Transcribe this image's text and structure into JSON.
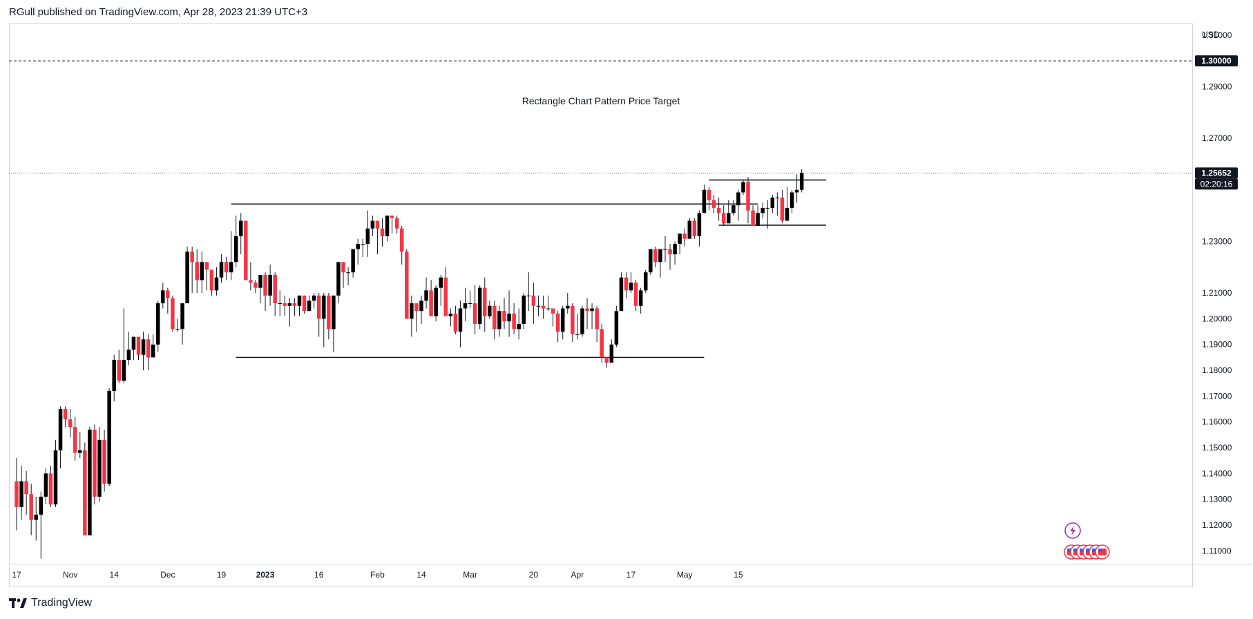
{
  "header": {
    "published": "RGull published on TradingView.com, Apr 28, 2023 21:39 UTC+3"
  },
  "footer": {
    "brand": "TradingView",
    "icon": "tradingview-logo-icon"
  },
  "chart_data": {
    "type": "candlestick",
    "instrument_currency": "USD",
    "ylim": [
      1.105,
      1.3145
    ],
    "y_ticks": [
      "1.31000",
      "1.29000",
      "1.27000",
      "1.23000",
      "1.21000",
      "1.20000",
      "1.19000",
      "1.18000",
      "1.17000",
      "1.16000",
      "1.15000",
      "1.14000",
      "1.13000",
      "1.12000",
      "1.11000"
    ],
    "x_ticks": [
      {
        "label": "17",
        "i": 0
      },
      {
        "label": "Nov",
        "i": 11
      },
      {
        "label": "14",
        "i": 20
      },
      {
        "label": "Dec",
        "i": 31
      },
      {
        "label": "19",
        "i": 42
      },
      {
        "label": "2023",
        "i": 51,
        "bold": true
      },
      {
        "label": "16",
        "i": 62
      },
      {
        "label": "Feb",
        "i": 74
      },
      {
        "label": "14",
        "i": 83
      },
      {
        "label": "Mar",
        "i": 93
      },
      {
        "label": "20",
        "i": 106
      },
      {
        "label": "Apr",
        "i": 115
      },
      {
        "label": "17",
        "i": 126
      },
      {
        "label": "May",
        "i": 137
      },
      {
        "label": "15",
        "i": 148
      }
    ],
    "candles": [
      [
        1.137,
        1.127,
        1.146,
        1.118
      ],
      [
        1.127,
        1.137,
        1.143,
        1.122
      ],
      [
        1.137,
        1.132,
        1.141,
        1.124
      ],
      [
        1.132,
        1.122,
        1.136,
        1.116
      ],
      [
        1.122,
        1.124,
        1.131,
        1.114
      ],
      [
        1.124,
        1.131,
        1.133,
        1.107
      ],
      [
        1.131,
        1.14,
        1.142,
        1.128
      ],
      [
        1.14,
        1.128,
        1.143,
        1.127
      ],
      [
        1.128,
        1.149,
        1.153,
        1.127
      ],
      [
        1.149,
        1.165,
        1.166,
        1.142
      ],
      [
        1.165,
        1.161,
        1.166,
        1.158
      ],
      [
        1.161,
        1.158,
        1.165,
        1.154
      ],
      [
        1.158,
        1.148,
        1.162,
        1.145
      ],
      [
        1.148,
        1.149,
        1.156,
        1.146
      ],
      [
        1.149,
        1.116,
        1.152,
        1.116
      ],
      [
        1.116,
        1.157,
        1.158,
        1.116
      ],
      [
        1.157,
        1.131,
        1.159,
        1.128
      ],
      [
        1.131,
        1.153,
        1.158,
        1.129
      ],
      [
        1.153,
        1.136,
        1.157,
        1.133
      ],
      [
        1.136,
        1.172,
        1.173,
        1.135
      ],
      [
        1.172,
        1.184,
        1.186,
        1.168
      ],
      [
        1.184,
        1.176,
        1.188,
        1.175
      ],
      [
        1.176,
        1.184,
        1.204,
        1.175
      ],
      [
        1.184,
        1.188,
        1.195,
        1.182
      ],
      [
        1.188,
        1.193,
        1.193,
        1.184
      ],
      [
        1.193,
        1.186,
        1.193,
        1.184
      ],
      [
        1.186,
        1.192,
        1.195,
        1.18
      ],
      [
        1.192,
        1.185,
        1.194,
        1.18
      ],
      [
        1.185,
        1.19,
        1.194,
        1.187
      ],
      [
        1.19,
        1.206,
        1.207,
        1.187
      ],
      [
        1.206,
        1.211,
        1.214,
        1.204
      ],
      [
        1.211,
        1.208,
        1.212,
        1.202
      ],
      [
        1.208,
        1.196,
        1.209,
        1.195
      ],
      [
        1.196,
        1.196,
        1.2,
        1.195
      ],
      [
        1.196,
        1.206,
        1.206,
        1.19
      ],
      [
        1.206,
        1.226,
        1.228,
        1.206
      ],
      [
        1.226,
        1.222,
        1.228,
        1.21
      ],
      [
        1.222,
        1.215,
        1.227,
        1.21
      ],
      [
        1.215,
        1.222,
        1.226,
        1.21
      ],
      [
        1.222,
        1.219,
        1.222,
        1.211
      ],
      [
        1.219,
        1.211,
        1.219,
        1.209
      ],
      [
        1.211,
        1.216,
        1.22,
        1.209
      ],
      [
        1.216,
        1.222,
        1.225,
        1.214
      ],
      [
        1.222,
        1.218,
        1.224,
        1.215
      ],
      [
        1.218,
        1.222,
        1.234,
        1.215
      ],
      [
        1.222,
        1.232,
        1.24,
        1.22
      ],
      [
        1.232,
        1.238,
        1.241,
        1.225
      ],
      [
        1.238,
        1.215,
        1.238,
        1.215
      ],
      [
        1.215,
        1.214,
        1.222,
        1.211
      ],
      [
        1.214,
        1.212,
        1.215,
        1.21
      ],
      [
        1.212,
        1.217,
        1.217,
        1.206
      ],
      [
        1.217,
        1.209,
        1.218,
        1.203
      ],
      [
        1.209,
        1.217,
        1.221,
        1.205
      ],
      [
        1.217,
        1.206,
        1.218,
        1.201
      ],
      [
        1.206,
        1.206,
        1.211,
        1.201
      ],
      [
        1.206,
        1.205,
        1.209,
        1.201
      ],
      [
        1.205,
        1.206,
        1.208,
        1.197
      ],
      [
        1.206,
        1.205,
        1.208,
        1.201
      ],
      [
        1.205,
        1.209,
        1.209,
        1.201
      ],
      [
        1.209,
        1.203,
        1.209,
        1.202
      ],
      [
        1.203,
        1.207,
        1.209,
        1.203
      ],
      [
        1.207,
        1.209,
        1.21,
        1.204
      ],
      [
        1.209,
        1.2,
        1.21,
        1.193
      ],
      [
        1.2,
        1.209,
        1.21,
        1.189
      ],
      [
        1.209,
        1.196,
        1.21,
        1.192
      ],
      [
        1.196,
        1.209,
        1.209,
        1.187
      ],
      [
        1.209,
        1.222,
        1.222,
        1.206
      ],
      [
        1.222,
        1.218,
        1.222,
        1.212
      ],
      [
        1.218,
        1.218,
        1.22,
        1.213
      ],
      [
        1.218,
        1.227,
        1.227,
        1.216
      ],
      [
        1.227,
        1.229,
        1.231,
        1.221
      ],
      [
        1.229,
        1.229,
        1.231,
        1.224
      ],
      [
        1.229,
        1.235,
        1.242,
        1.224
      ],
      [
        1.235,
        1.238,
        1.24,
        1.232
      ],
      [
        1.238,
        1.235,
        1.238,
        1.225
      ],
      [
        1.235,
        1.232,
        1.239,
        1.228
      ],
      [
        1.232,
        1.24,
        1.24,
        1.23
      ],
      [
        1.24,
        1.239,
        1.24,
        1.233
      ],
      [
        1.239,
        1.235,
        1.24,
        1.233
      ],
      [
        1.235,
        1.226,
        1.236,
        1.221
      ],
      [
        1.226,
        1.2,
        1.227,
        1.2
      ],
      [
        1.2,
        1.206,
        1.209,
        1.193
      ],
      [
        1.206,
        1.203,
        1.206,
        1.195
      ],
      [
        1.203,
        1.207,
        1.209,
        1.198
      ],
      [
        1.207,
        1.211,
        1.216,
        1.204
      ],
      [
        1.211,
        1.201,
        1.215,
        1.201
      ],
      [
        1.201,
        1.212,
        1.213,
        1.199
      ],
      [
        1.212,
        1.216,
        1.217,
        1.205
      ],
      [
        1.216,
        1.201,
        1.22,
        1.201
      ],
      [
        1.201,
        1.202,
        1.204,
        1.197
      ],
      [
        1.202,
        1.195,
        1.205,
        1.194
      ],
      [
        1.195,
        1.204,
        1.207,
        1.189
      ],
      [
        1.204,
        1.206,
        1.212,
        1.199
      ],
      [
        1.206,
        1.206,
        1.211,
        1.204
      ],
      [
        1.206,
        1.198,
        1.213,
        1.194
      ],
      [
        1.198,
        1.212,
        1.213,
        1.196
      ],
      [
        1.212,
        1.201,
        1.216,
        1.195
      ],
      [
        1.201,
        1.205,
        1.207,
        1.2
      ],
      [
        1.205,
        1.196,
        1.207,
        1.192
      ],
      [
        1.196,
        1.203,
        1.205,
        1.193
      ],
      [
        1.203,
        1.199,
        1.208,
        1.196
      ],
      [
        1.199,
        1.202,
        1.211,
        1.193
      ],
      [
        1.202,
        1.196,
        1.206,
        1.194
      ],
      [
        1.196,
        1.198,
        1.204,
        1.192
      ],
      [
        1.198,
        1.209,
        1.21,
        1.196
      ],
      [
        1.209,
        1.209,
        1.218,
        1.203
      ],
      [
        1.209,
        1.205,
        1.214,
        1.198
      ],
      [
        1.205,
        1.205,
        1.209,
        1.201
      ],
      [
        1.205,
        1.204,
        1.209,
        1.2
      ],
      [
        1.204,
        1.204,
        1.209,
        1.203
      ],
      [
        1.204,
        1.202,
        1.204,
        1.197
      ],
      [
        1.202,
        1.195,
        1.203,
        1.191
      ],
      [
        1.195,
        1.204,
        1.205,
        1.192
      ],
      [
        1.204,
        1.205,
        1.21,
        1.202
      ],
      [
        1.205,
        1.194,
        1.206,
        1.191
      ],
      [
        1.194,
        1.194,
        1.202,
        1.192
      ],
      [
        1.194,
        1.204,
        1.205,
        1.193
      ],
      [
        1.204,
        1.203,
        1.208,
        1.196
      ],
      [
        1.203,
        1.204,
        1.206,
        1.196
      ],
      [
        1.204,
        1.196,
        1.205,
        1.191
      ],
      [
        1.196,
        1.185,
        1.198,
        1.183
      ],
      [
        1.185,
        1.183,
        1.185,
        1.181
      ],
      [
        1.183,
        1.19,
        1.192,
        1.183
      ],
      [
        1.19,
        1.203,
        1.205,
        1.189
      ],
      [
        1.203,
        1.216,
        1.218,
        1.203
      ],
      [
        1.216,
        1.211,
        1.218,
        1.208
      ],
      [
        1.211,
        1.214,
        1.218,
        1.21
      ],
      [
        1.214,
        1.205,
        1.215,
        1.203
      ],
      [
        1.205,
        1.211,
        1.212,
        1.202
      ],
      [
        1.211,
        1.218,
        1.219,
        1.21
      ],
      [
        1.218,
        1.227,
        1.227,
        1.217
      ],
      [
        1.227,
        1.222,
        1.228,
        1.22
      ],
      [
        1.222,
        1.227,
        1.227,
        1.216
      ],
      [
        1.227,
        1.227,
        1.232,
        1.222
      ],
      [
        1.227,
        1.225,
        1.229,
        1.219
      ],
      [
        1.225,
        1.229,
        1.23,
        1.221
      ],
      [
        1.229,
        1.233,
        1.233,
        1.225
      ],
      [
        1.233,
        1.231,
        1.235,
        1.228
      ],
      [
        1.231,
        1.238,
        1.239,
        1.231
      ],
      [
        1.238,
        1.232,
        1.239,
        1.231
      ],
      [
        1.232,
        1.241,
        1.242,
        1.228
      ],
      [
        1.241,
        1.25,
        1.252,
        1.241
      ],
      [
        1.25,
        1.246,
        1.251,
        1.242
      ],
      [
        1.246,
        1.243,
        1.248,
        1.241
      ],
      [
        1.243,
        1.241,
        1.247,
        1.238
      ],
      [
        1.241,
        1.237,
        1.244,
        1.236
      ],
      [
        1.237,
        1.241,
        1.246,
        1.237
      ],
      [
        1.241,
        1.244,
        1.246,
        1.24
      ],
      [
        1.244,
        1.249,
        1.25,
        1.238
      ],
      [
        1.249,
        1.253,
        1.254,
        1.248
      ],
      [
        1.253,
        1.242,
        1.255,
        1.237
      ],
      [
        1.242,
        1.236,
        1.244,
        1.236
      ],
      [
        1.236,
        1.241,
        1.244,
        1.236
      ],
      [
        1.241,
        1.243,
        1.245,
        1.239
      ],
      [
        1.243,
        1.243,
        1.246,
        1.235
      ],
      [
        1.243,
        1.247,
        1.248,
        1.241
      ],
      [
        1.247,
        1.247,
        1.249,
        1.24
      ],
      [
        1.247,
        1.238,
        1.25,
        1.237
      ],
      [
        1.238,
        1.243,
        1.251,
        1.238
      ],
      [
        1.243,
        1.249,
        1.25,
        1.241
      ],
      [
        1.249,
        1.25,
        1.256,
        1.245
      ],
      [
        1.25,
        1.25652,
        1.258,
        1.249
      ]
    ],
    "horizontal_lines": [
      {
        "label": "Rectangle Chart Pattern Price Target",
        "price": 1.3,
        "style": "dashed",
        "x0": 0,
        "x1": "end"
      },
      {
        "price": 1.2565,
        "style": "dotted",
        "x0": 0,
        "x1": "end"
      },
      {
        "price": 1.2445,
        "style": "solid",
        "x0": 44,
        "x1": 152
      },
      {
        "price": 1.185,
        "style": "solid",
        "x0": 45,
        "x1": 141
      },
      {
        "price": 1.2538,
        "style": "solid",
        "x0": 142,
        "x1": 166
      },
      {
        "price": 1.2363,
        "style": "solid",
        "x0": 144,
        "x1": 166
      }
    ],
    "price_labels": [
      {
        "text": "1.30000",
        "price": 1.3
      },
      {
        "text": "1.25652",
        "price": 1.25652
      },
      {
        "text": "02:20:16",
        "price": 1.25652,
        "countdown": true
      }
    ],
    "colors": {
      "up": "#000000",
      "down": "#f23645",
      "last_price": "#131722",
      "grid": "#f0f3fa"
    },
    "event_icons": [
      "lightning-event-icon",
      "us-flag-event-icon"
    ]
  }
}
